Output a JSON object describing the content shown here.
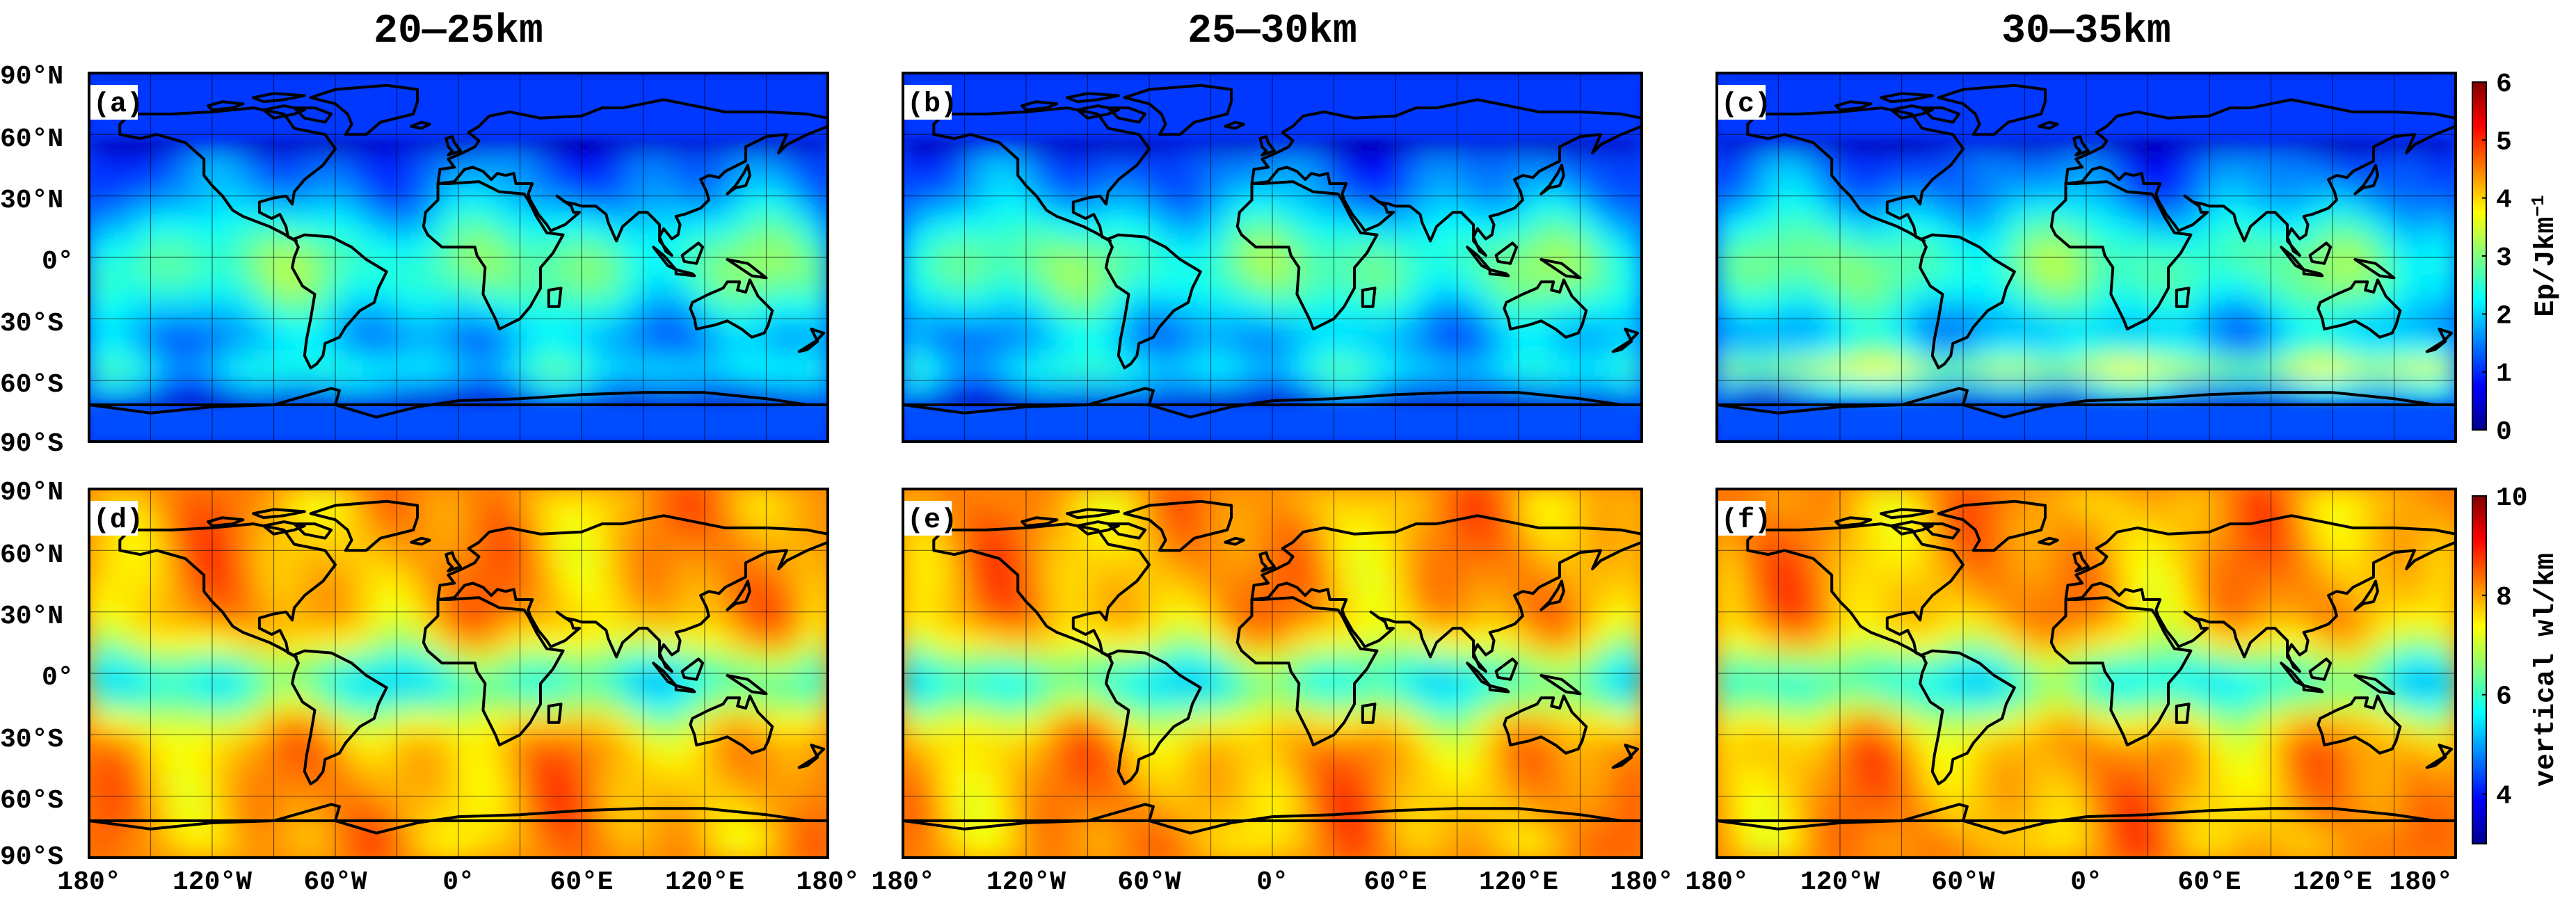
{
  "figure": {
    "column_titles": [
      "20—25km",
      "25—30km",
      "30—35km"
    ],
    "panels": [
      {
        "label": "(a)",
        "variable": "ep",
        "layer": "20—25km"
      },
      {
        "label": "(b)",
        "variable": "ep",
        "layer": "25—30km"
      },
      {
        "label": "(c)",
        "variable": "ep",
        "layer": "30—35km"
      },
      {
        "label": "(d)",
        "variable": "wl",
        "layer": "20—25km"
      },
      {
        "label": "(e)",
        "variable": "wl",
        "layer": "25—30km"
      },
      {
        "label": "(f)",
        "variable": "wl",
        "layer": "30—35km"
      }
    ],
    "lat_ticks": [
      "90°N",
      "60°N",
      "30°N",
      "0°",
      "30°S",
      "60°S",
      "90°S"
    ],
    "lon_ticks": [
      "180°",
      "120°W",
      "60°W",
      "0°",
      "60°E",
      "120°E",
      "180°"
    ],
    "colorbars": {
      "ep": {
        "label": "Ep/Jkm",
        "label_sup": "−1",
        "ticks": [
          "0",
          "1",
          "2",
          "3",
          "4",
          "5",
          "6"
        ],
        "min": 0,
        "max": 6
      },
      "wl": {
        "label": "vertical wl/km",
        "ticks": [
          "4",
          "6",
          "8",
          "10"
        ],
        "min": 3,
        "max": 10
      }
    },
    "colormap": "jet"
  }
}
